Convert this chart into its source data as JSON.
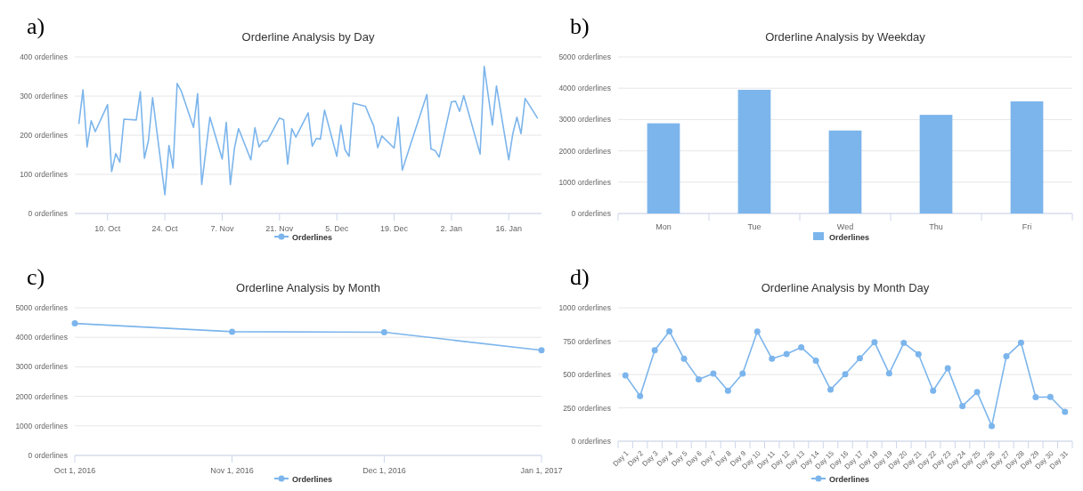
{
  "chart_data": [
    {
      "type": "line",
      "title": "Orderline Analysis by Day",
      "annotations": [
        "a)"
      ],
      "legend": "bottom",
      "grid": "y",
      "marker": "none",
      "xlim": [
        "2016-10-02",
        "2017-01-24"
      ],
      "xticks": [
        {
          "value": "2016-10-10",
          "label": "10. Oct"
        },
        {
          "value": "2016-10-24",
          "label": "24. Oct"
        },
        {
          "value": "2016-11-07",
          "label": "7. Nov"
        },
        {
          "value": "2016-11-21",
          "label": "21. Nov"
        },
        {
          "value": "2016-12-05",
          "label": "5. Dec"
        },
        {
          "value": "2016-12-19",
          "label": "19. Dec"
        },
        {
          "value": "2017-01-02",
          "label": "2. Jan"
        },
        {
          "value": "2017-01-16",
          "label": "16. Jan"
        }
      ],
      "ylim": [
        0,
        400
      ],
      "yticks": [
        {
          "value": 0,
          "label": "0 orderlines"
        },
        {
          "value": 100,
          "label": "100 orderlines"
        },
        {
          "value": 200,
          "label": "200 orderlines"
        },
        {
          "value": 300,
          "label": "300 orderlines"
        },
        {
          "value": 400,
          "label": "400 orderlines"
        }
      ],
      "x": [
        "2016-10-03",
        "2016-10-04",
        "2016-10-05",
        "2016-10-06",
        "2016-10-07",
        "2016-10-10",
        "2016-10-11",
        "2016-10-12",
        "2016-10-13",
        "2016-10-14",
        "2016-10-17",
        "2016-10-18",
        "2016-10-19",
        "2016-10-20",
        "2016-10-21",
        "2016-10-24",
        "2016-10-25",
        "2016-10-26",
        "2016-10-27",
        "2016-10-28",
        "2016-10-31",
        "2016-11-01",
        "2016-11-02",
        "2016-11-03",
        "2016-11-04",
        "2016-11-07",
        "2016-11-08",
        "2016-11-09",
        "2016-11-10",
        "2016-11-11",
        "2016-11-14",
        "2016-11-15",
        "2016-11-16",
        "2016-11-17",
        "2016-11-18",
        "2016-11-21",
        "2016-11-22",
        "2016-11-23",
        "2016-11-24",
        "2016-11-25",
        "2016-11-28",
        "2016-11-29",
        "2016-11-30",
        "2016-12-01",
        "2016-12-02",
        "2016-12-05",
        "2016-12-06",
        "2016-12-07",
        "2016-12-08",
        "2016-12-09",
        "2016-12-12",
        "2016-12-13",
        "2016-12-14",
        "2016-12-15",
        "2016-12-16",
        "2016-12-19",
        "2016-12-20",
        "2016-12-21",
        "2016-12-22",
        "2016-12-23",
        "2016-12-26",
        "2016-12-27",
        "2016-12-28",
        "2016-12-29",
        "2016-12-30",
        "2017-01-02",
        "2017-01-03",
        "2017-01-04",
        "2017-01-05",
        "2017-01-06",
        "2017-01-09",
        "2017-01-10",
        "2017-01-11",
        "2017-01-12",
        "2017-01-13",
        "2017-01-16",
        "2017-01-17",
        "2017-01-18",
        "2017-01-19",
        "2017-01-20",
        "2017-01-23"
      ],
      "series": [
        {
          "name": "Orderlines",
          "color": "#7cb5ec",
          "values": [
            230,
            316,
            170,
            237,
            209,
            278,
            107,
            153,
            131,
            241,
            239,
            311,
            141,
            187,
            296,
            48,
            174,
            116,
            332,
            313,
            220,
            306,
            74,
            160,
            246,
            139,
            233,
            74,
            167,
            217,
            137,
            219,
            170,
            185,
            185,
            244,
            239,
            126,
            217,
            195,
            257,
            172,
            192,
            190,
            264,
            146,
            226,
            163,
            146,
            282,
            274,
            248,
            224,
            168,
            198,
            167,
            246,
            111,
            143,
            176,
            272,
            304,
            165,
            161,
            144,
            285,
            287,
            261,
            301,
            264,
            152,
            376,
            301,
            226,
            326,
            137,
            204,
            246,
            204,
            294,
            244
          ]
        }
      ]
    },
    {
      "type": "bar",
      "title": "Orderline Analysis by Weekday",
      "annotations": [
        "b)"
      ],
      "legend": "bottom",
      "grid": "y",
      "categories": [
        "Mon",
        "Tue",
        "Wed",
        "Thu",
        "Fri"
      ],
      "ylim": [
        0,
        5000
      ],
      "yticks": [
        {
          "value": 0,
          "label": "0 orderlines"
        },
        {
          "value": 1000,
          "label": "1000 orderlines"
        },
        {
          "value": 2000,
          "label": "2000 orderlines"
        },
        {
          "value": 3000,
          "label": "3000 orderlines"
        },
        {
          "value": 4000,
          "label": "4000 orderlines"
        },
        {
          "value": 5000,
          "label": "5000 orderlines"
        }
      ],
      "series": [
        {
          "name": "Orderlines",
          "color": "#7cb5ec",
          "values": [
            2880,
            3950,
            2650,
            3150,
            3580
          ]
        }
      ]
    },
    {
      "type": "line",
      "title": "Orderline Analysis by Month",
      "annotations": [
        "c)"
      ],
      "legend": "bottom",
      "grid": "y",
      "marker": "circle",
      "xlim": [
        "2016-10-01",
        "2017-01-01"
      ],
      "xticks": [
        {
          "value": "2016-10-01",
          "label": "Oct 1, 2016"
        },
        {
          "value": "2016-11-01",
          "label": "Nov 1, 2016"
        },
        {
          "value": "2016-12-01",
          "label": "Dec 1, 2016"
        },
        {
          "value": "2017-01-01",
          "label": "Jan 1, 2017"
        }
      ],
      "ylim": [
        0,
        5000
      ],
      "yticks": [
        {
          "value": 0,
          "label": "0 orderlines"
        },
        {
          "value": 1000,
          "label": "1000 orderlines"
        },
        {
          "value": 2000,
          "label": "2000 orderlines"
        },
        {
          "value": 3000,
          "label": "3000 orderlines"
        },
        {
          "value": 4000,
          "label": "4000 orderlines"
        },
        {
          "value": 5000,
          "label": "5000 orderlines"
        }
      ],
      "x": [
        "2016-10-01",
        "2016-11-01",
        "2016-12-01",
        "2017-01-01"
      ],
      "series": [
        {
          "name": "Orderlines",
          "color": "#7cb5ec",
          "values": [
            4470,
            4190,
            4170,
            3560
          ]
        }
      ]
    },
    {
      "type": "line",
      "title": "Orderline Analysis by Month Day",
      "annotations": [
        "d)"
      ],
      "legend": "bottom",
      "grid": "y",
      "marker": "circle",
      "categories": [
        "Day 1",
        "Day 2",
        "Day 3",
        "Day 4",
        "Day 5",
        "Day 6",
        "Day 7",
        "Day 8",
        "Day 9",
        "Day 10",
        "Day 11",
        "Day 12",
        "Day 13",
        "Day 14",
        "Day 15",
        "Day 16",
        "Day 17",
        "Day 18",
        "Day 19",
        "Day 20",
        "Day 21",
        "Day 22",
        "Day 23",
        "Day 24",
        "Day 25",
        "Day 26",
        "Day 27",
        "Day 28",
        "Day 29",
        "Day 30",
        "Day 31"
      ],
      "ylim": [
        0,
        1000
      ],
      "yticks": [
        {
          "value": 0,
          "label": "0 orderlines"
        },
        {
          "value": 250,
          "label": "250 orderlines"
        },
        {
          "value": 500,
          "label": "500 orderlines"
        },
        {
          "value": 750,
          "label": "750 orderlines"
        },
        {
          "value": 1000,
          "label": "1000 orderlines"
        }
      ],
      "series": [
        {
          "name": "Orderlines",
          "color": "#7cb5ec",
          "values": [
            494,
            338,
            682,
            824,
            618,
            464,
            506,
            378,
            506,
            822,
            618,
            654,
            704,
            604,
            386,
            502,
            622,
            742,
            508,
            736,
            652,
            378,
            546,
            264,
            368,
            114,
            636,
            738,
            330,
            332,
            220
          ]
        }
      ]
    }
  ]
}
